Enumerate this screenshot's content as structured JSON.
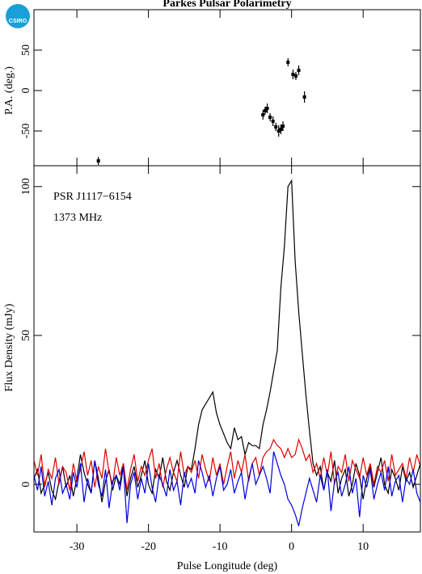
{
  "logo": "CSIRO",
  "chart_data": [
    {
      "type": "scatter",
      "title": "Parkes Pulsar Polarimetry",
      "ylabel": "P.A. (deg.)",
      "x": [
        -27,
        -4,
        -3.7,
        -3.4,
        -3,
        -2.6,
        -2.2,
        -1.8,
        -1.5,
        -1.2,
        -0.5,
        0.2,
        0.6,
        1,
        1.8
      ],
      "values": [
        -87,
        -30,
        -25,
        -22,
        -33,
        -38,
        -45,
        -50,
        -48,
        -44,
        35,
        20,
        18,
        25,
        -8
      ],
      "errors": [
        5,
        6,
        5,
        6,
        5,
        6,
        5,
        7,
        6,
        6,
        5,
        6,
        5,
        6,
        7
      ],
      "color": "#000000",
      "xlim": [
        -36,
        18
      ],
      "xticks": [
        -30,
        -20,
        -10,
        0,
        10
      ],
      "ylim": [
        -93,
        100
      ],
      "yticks": [
        -50,
        0,
        50
      ]
    },
    {
      "type": "line",
      "xlabel": "Pulse Longitude (deg)",
      "ylabel": "Flux Density (mJy)",
      "annotations": [
        "PSR J1117−6154",
        "1373 MHz"
      ],
      "x": [
        -36,
        -35.5,
        -35,
        -34.5,
        -34,
        -33.5,
        -33,
        -32.5,
        -32,
        -31.5,
        -31,
        -30.5,
        -30,
        -29.5,
        -29,
        -28.5,
        -28,
        -27.5,
        -27,
        -26.5,
        -26,
        -25.5,
        -25,
        -24.5,
        -24,
        -23.5,
        -23,
        -22.5,
        -22,
        -21.5,
        -21,
        -20.5,
        -20,
        -19.5,
        -19,
        -18.5,
        -18,
        -17.5,
        -17,
        -16.5,
        -16,
        -15.5,
        -15,
        -14.5,
        -14,
        -13.5,
        -13,
        -12.5,
        -12,
        -11.5,
        -11,
        -10.5,
        -10,
        -9.5,
        -9,
        -8.5,
        -8,
        -7.5,
        -7,
        -6.5,
        -6,
        -5.5,
        -5,
        -4.5,
        -4,
        -3.5,
        -3,
        -2.5,
        -2,
        -1.5,
        -1,
        -0.5,
        0,
        0.5,
        1,
        1.5,
        2,
        2.5,
        3,
        3.5,
        4,
        4.5,
        5,
        5.5,
        6,
        6.5,
        7,
        7.5,
        8,
        8.5,
        9,
        9.5,
        10,
        10.5,
        11,
        11.5,
        12,
        12.5,
        13,
        13.5,
        14,
        14.5,
        15,
        15.5,
        16,
        16.5,
        17,
        17.5,
        18
      ],
      "series": [
        {
          "color": "#000000",
          "values": [
            2,
            5,
            -3,
            0,
            4,
            -2,
            -5,
            1,
            6,
            -1,
            3,
            -4,
            2,
            10,
            4,
            0,
            -3,
            8,
            2,
            -6,
            1,
            5,
            -2,
            3,
            0,
            7,
            -4,
            2,
            6,
            -1,
            3,
            8,
            0,
            -3,
            5,
            2,
            9,
            1,
            -2,
            4,
            8,
            3,
            -1,
            6,
            5,
            12,
            20,
            25,
            27,
            29,
            31,
            24,
            20,
            17,
            14,
            12,
            19,
            15,
            16,
            10,
            14,
            13,
            13,
            12,
            20,
            25,
            31,
            38,
            45,
            66,
            80,
            100,
            102,
            75,
            58,
            44,
            30,
            18,
            7,
            3,
            6,
            -2,
            4,
            1,
            8,
            -3,
            2,
            5,
            -4,
            0,
            7,
            3,
            -5,
            2,
            6,
            -1,
            4,
            9,
            0,
            -3,
            5,
            2,
            -2,
            6,
            1,
            4,
            -1,
            3,
            7
          ]
        },
        {
          "color": "#e00000",
          "values": [
            8,
            3,
            10,
            -1,
            5,
            2,
            9,
            0,
            6,
            4,
            -2,
            7,
            1,
            5,
            11,
            3,
            8,
            -1,
            6,
            2,
            12,
            4,
            0,
            9,
            3,
            7,
            -2,
            5,
            10,
            1,
            6,
            3,
            8,
            12,
            2,
            7,
            -1,
            5,
            9,
            4,
            1,
            11,
            3,
            6,
            4,
            8,
            2,
            10,
            5,
            1,
            9,
            3,
            7,
            0,
            6,
            11,
            2,
            8,
            4,
            10,
            1,
            7,
            9,
            3,
            9,
            11,
            12,
            15,
            13,
            12,
            9,
            12,
            9,
            10,
            15,
            12,
            8,
            10,
            4,
            7,
            2,
            9,
            3,
            11,
            0,
            6,
            4,
            10,
            1,
            8,
            5,
            2,
            9,
            3,
            7,
            0,
            6,
            4,
            8,
            1,
            10,
            3,
            5,
            7,
            2,
            9,
            4,
            10,
            6
          ]
        },
        {
          "color": "#0000e0",
          "values": [
            3,
            -2,
            6,
            -4,
            1,
            -7,
            2,
            5,
            -3,
            0,
            -5,
            4,
            -1,
            7,
            -6,
            2,
            -3,
            8,
            0,
            -4,
            5,
            -8,
            1,
            3,
            -2,
            6,
            -13,
            0,
            4,
            -5,
            2,
            -3,
            7,
            -1,
            -6,
            3,
            0,
            -4,
            5,
            -2,
            1,
            -7,
            4,
            -1,
            2,
            -3,
            8,
            4,
            -1,
            3,
            -4,
            2,
            6,
            -2,
            0,
            5,
            -3,
            1,
            4,
            -5,
            2,
            7,
            0,
            3,
            6,
            2,
            -3,
            11,
            7,
            3,
            0,
            -5,
            -7,
            -10,
            -14,
            -8,
            -3,
            2,
            -2,
            -6,
            3,
            -2,
            5,
            -9,
            1,
            4,
            -4,
            0,
            6,
            -3,
            2,
            -11,
            3,
            -1,
            5,
            -5,
            0,
            4,
            -2,
            6,
            -4,
            1,
            3,
            -6,
            2,
            0,
            5,
            -3,
            -6
          ]
        }
      ],
      "xlim": [
        -36,
        18
      ],
      "xticks": [
        -30,
        -20,
        -10,
        0,
        10
      ],
      "ylim": [
        -16,
        107
      ],
      "yticks": [
        0,
        50,
        100
      ]
    }
  ]
}
